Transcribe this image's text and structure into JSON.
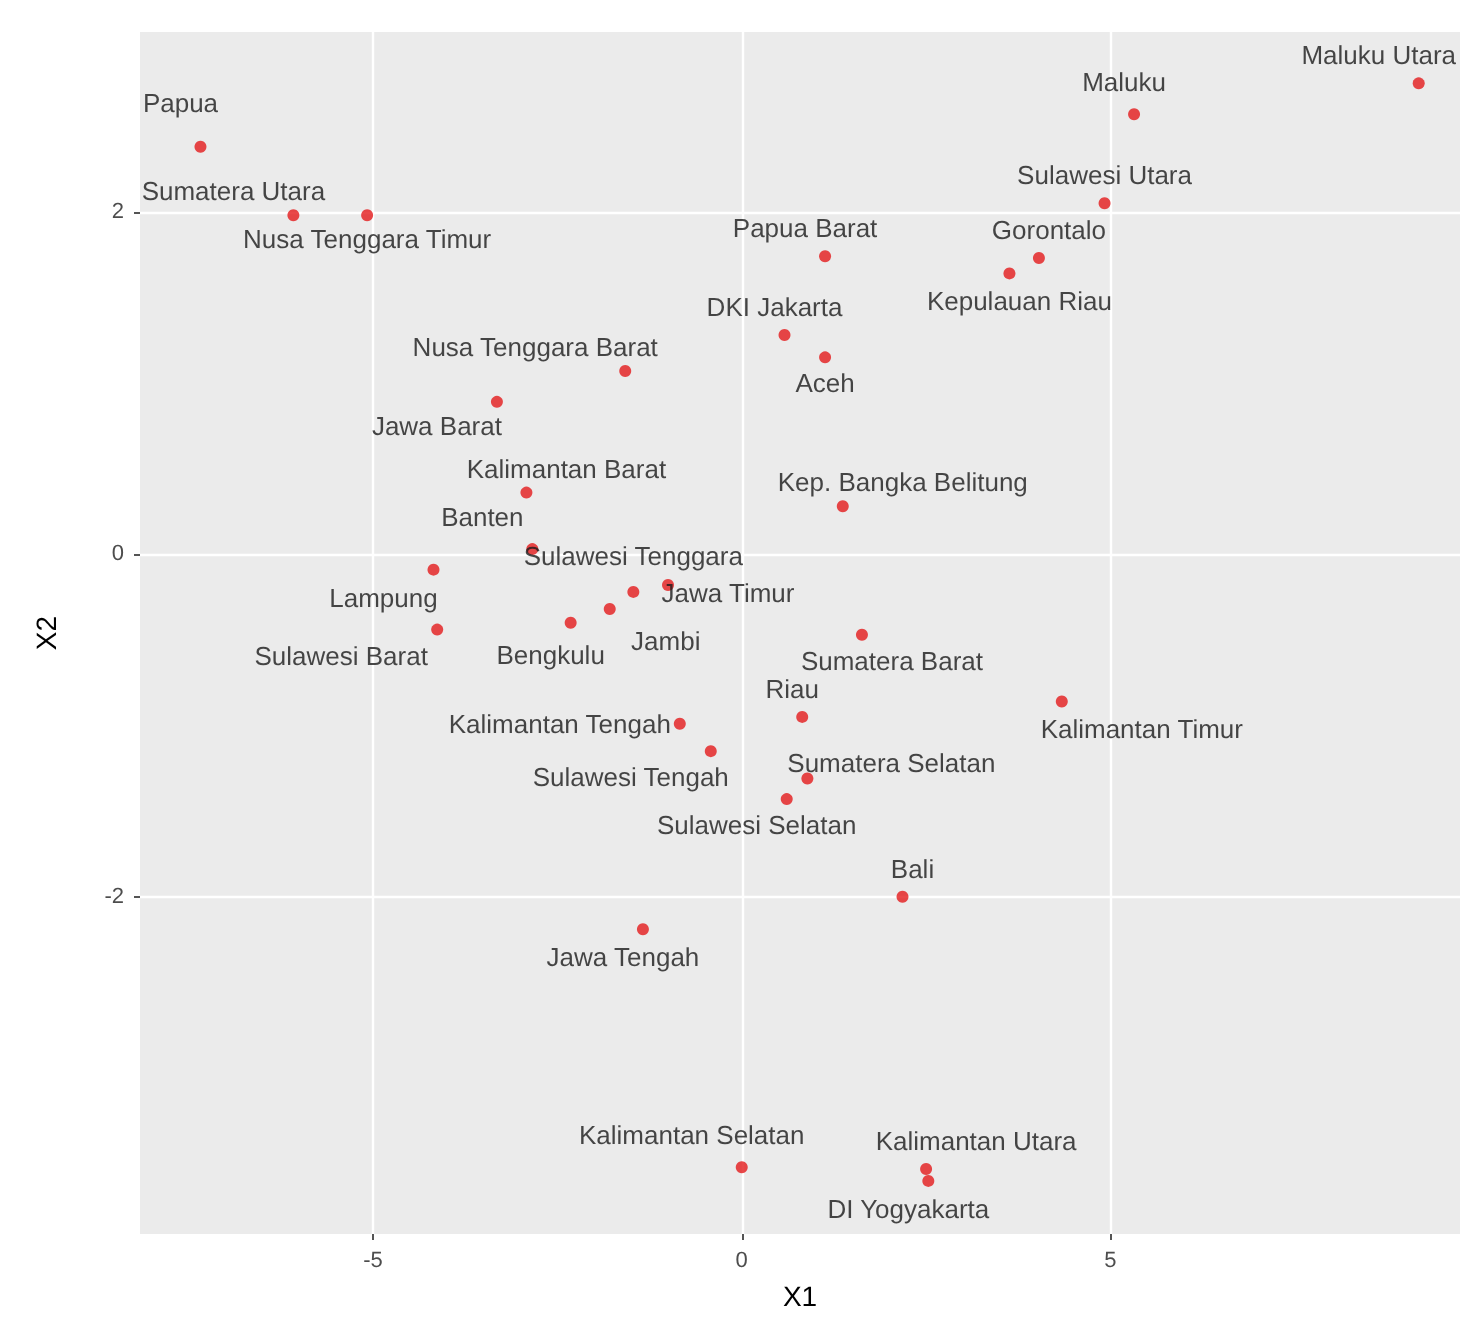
{
  "chart_data": {
    "type": "scatter",
    "xlabel": "X1",
    "ylabel": "X2",
    "xlim": [
      -8.16,
      9.74
    ],
    "ylim": [
      -3.97,
      3.05
    ],
    "xticks": [
      -5,
      0,
      5
    ],
    "yticks": [
      -2,
      0,
      2
    ],
    "grid": true,
    "marker": "circle",
    "x": [
      -7.34,
      -6.08,
      -5.08,
      -1.58,
      -3.32,
      -2.92,
      -2.84,
      -1.47,
      -4.18,
      -4.13,
      -2.32,
      -1.79,
      -1.0,
      9.18,
      5.32,
      4.92,
      4.03,
      3.63,
      1.13,
      0.58,
      1.13,
      1.37,
      1.63,
      0.82,
      4.34,
      0.89,
      0.61,
      2.18,
      2.5,
      2.53,
      0.0,
      -0.84,
      -0.42,
      -1.34
    ],
    "series": [
      {
        "color": "#e31a1c",
        "values": [
          2.38,
          1.98,
          1.98,
          1.07,
          0.89,
          0.36,
          0.03,
          -0.22,
          -0.09,
          -0.44,
          -0.4,
          -0.32,
          -0.18,
          2.75,
          2.57,
          2.05,
          1.73,
          1.64,
          1.74,
          1.28,
          1.15,
          0.28,
          -0.47,
          -0.95,
          -0.86,
          -1.31,
          -1.43,
          -2.0,
          -3.59,
          -3.66,
          -3.58,
          -0.99,
          -1.15,
          -2.19
        ]
      }
    ],
    "annotations": [
      {
        "text": "Papua",
        "x": -7.34,
        "y": 2.38
      },
      {
        "text": "Sumatera Utara",
        "x": -6.08,
        "y": 1.98
      },
      {
        "text": "Nusa Tenggara Timur",
        "x": -5.08,
        "y": 1.98
      },
      {
        "text": "Nusa Tenggara Barat",
        "x": -1.58,
        "y": 1.07
      },
      {
        "text": "Jawa Barat",
        "x": -3.32,
        "y": 0.89
      },
      {
        "text": "Kalimantan Barat",
        "x": -2.92,
        "y": 0.36
      },
      {
        "text": "Banten",
        "x": -2.84,
        "y": 0.03
      },
      {
        "text": "Sulawesi Tenggara",
        "x": -1.47,
        "y": -0.22
      },
      {
        "text": "Lampung",
        "x": -4.18,
        "y": -0.09
      },
      {
        "text": "Sulawesi Barat",
        "x": -4.13,
        "y": -0.44
      },
      {
        "text": "Bengkulu",
        "x": -2.32,
        "y": -0.4
      },
      {
        "text": "Jambi",
        "x": -1.79,
        "y": -0.32
      },
      {
        "text": "Jawa Timur",
        "x": -1.0,
        "y": -0.18
      },
      {
        "text": "Maluku Utara",
        "x": 9.18,
        "y": 2.75
      },
      {
        "text": "Maluku",
        "x": 5.32,
        "y": 2.57
      },
      {
        "text": "Sulawesi Utara",
        "x": 4.92,
        "y": 2.05
      },
      {
        "text": "Gorontalo",
        "x": 4.03,
        "y": 1.73
      },
      {
        "text": "Kepulauan Riau",
        "x": 3.63,
        "y": 1.64
      },
      {
        "text": "Papua Barat",
        "x": 1.13,
        "y": 1.74
      },
      {
        "text": "DKI Jakarta",
        "x": 0.58,
        "y": 1.28
      },
      {
        "text": "Aceh",
        "x": 1.13,
        "y": 1.15
      },
      {
        "text": "Kep. Bangka Belitung",
        "x": 1.37,
        "y": 0.28
      },
      {
        "text": "Sumatera Barat",
        "x": 1.63,
        "y": -0.47
      },
      {
        "text": "Riau",
        "x": 0.82,
        "y": -0.95
      },
      {
        "text": "Kalimantan Timur",
        "x": 4.34,
        "y": -0.86
      },
      {
        "text": "Sumatera Selatan",
        "x": 0.89,
        "y": -1.31
      },
      {
        "text": "Sulawesi Selatan",
        "x": 0.61,
        "y": -1.43
      },
      {
        "text": "Bali",
        "x": 2.18,
        "y": -2.0
      },
      {
        "text": "Kalimantan Utara",
        "x": 2.5,
        "y": -3.59
      },
      {
        "text": "DI Yogyakarta",
        "x": 2.53,
        "y": -3.66
      },
      {
        "text": "Kalimantan Selatan",
        "x": 0.0,
        "y": -3.58
      },
      {
        "text": "Kalimantan Tengah",
        "x": -0.84,
        "y": -0.99
      },
      {
        "text": "Sulawesi Tengah",
        "x": -0.42,
        "y": -1.15
      },
      {
        "text": "Jawa Tengah",
        "x": -1.34,
        "y": -2.19
      }
    ]
  }
}
